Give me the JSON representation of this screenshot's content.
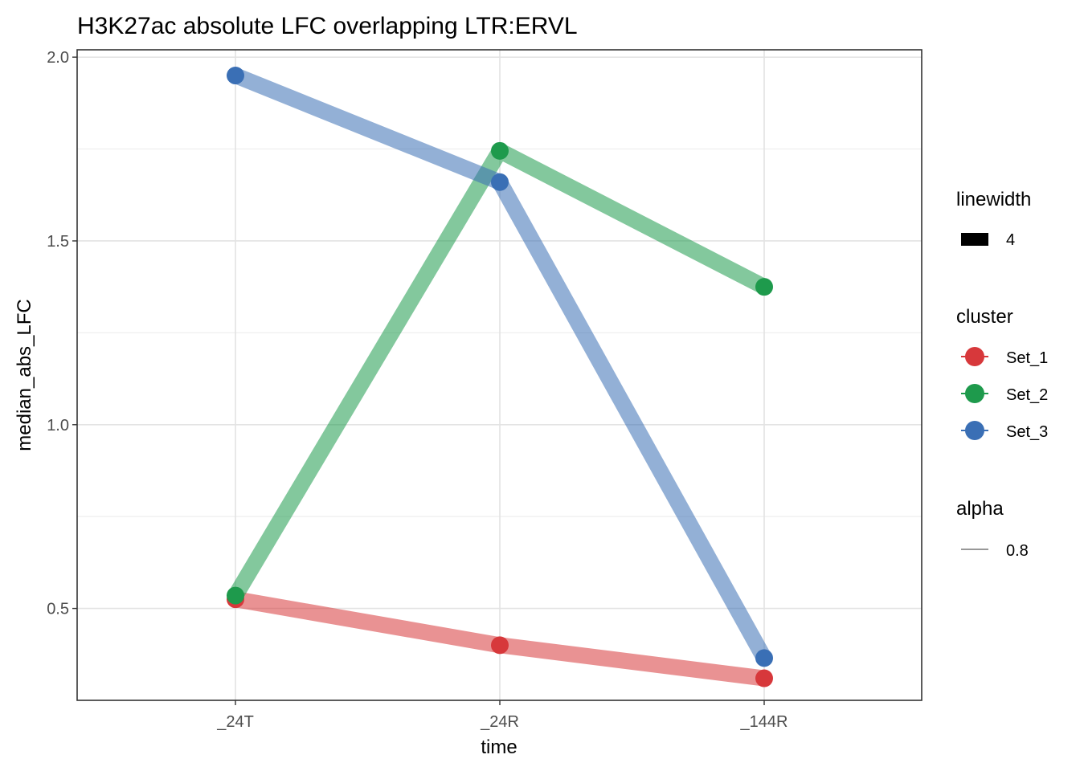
{
  "chart_data": {
    "type": "line",
    "title": "H3K27ac absolute LFC overlapping LTR:ERVL",
    "xlabel": "time",
    "ylabel": "median_abs_LFC",
    "categories": [
      "_24T",
      "_24R",
      "_144R"
    ],
    "ylim": [
      0.25,
      2.02
    ],
    "yticks": [
      0.5,
      1.0,
      1.5,
      2.0
    ],
    "ytick_labels": [
      "0.5",
      "1.0",
      "1.5",
      "2.0"
    ],
    "series": [
      {
        "name": "Set_1",
        "color": "#d7383b",
        "values": [
          0.525,
          0.4,
          0.31
        ]
      },
      {
        "name": "Set_2",
        "color": "#1e9a4c",
        "values": [
          0.535,
          1.745,
          1.375
        ]
      },
      {
        "name": "Set_3",
        "color": "#3a6fb5",
        "values": [
          1.95,
          1.66,
          0.365
        ]
      }
    ],
    "legends": {
      "linewidth": {
        "title": "linewidth",
        "label": "4"
      },
      "cluster": {
        "title": "cluster",
        "labels": [
          "Set_1",
          "Set_2",
          "Set_3"
        ]
      },
      "alpha": {
        "title": "alpha",
        "label": "0.8"
      }
    },
    "line_alpha": 0.55
  }
}
